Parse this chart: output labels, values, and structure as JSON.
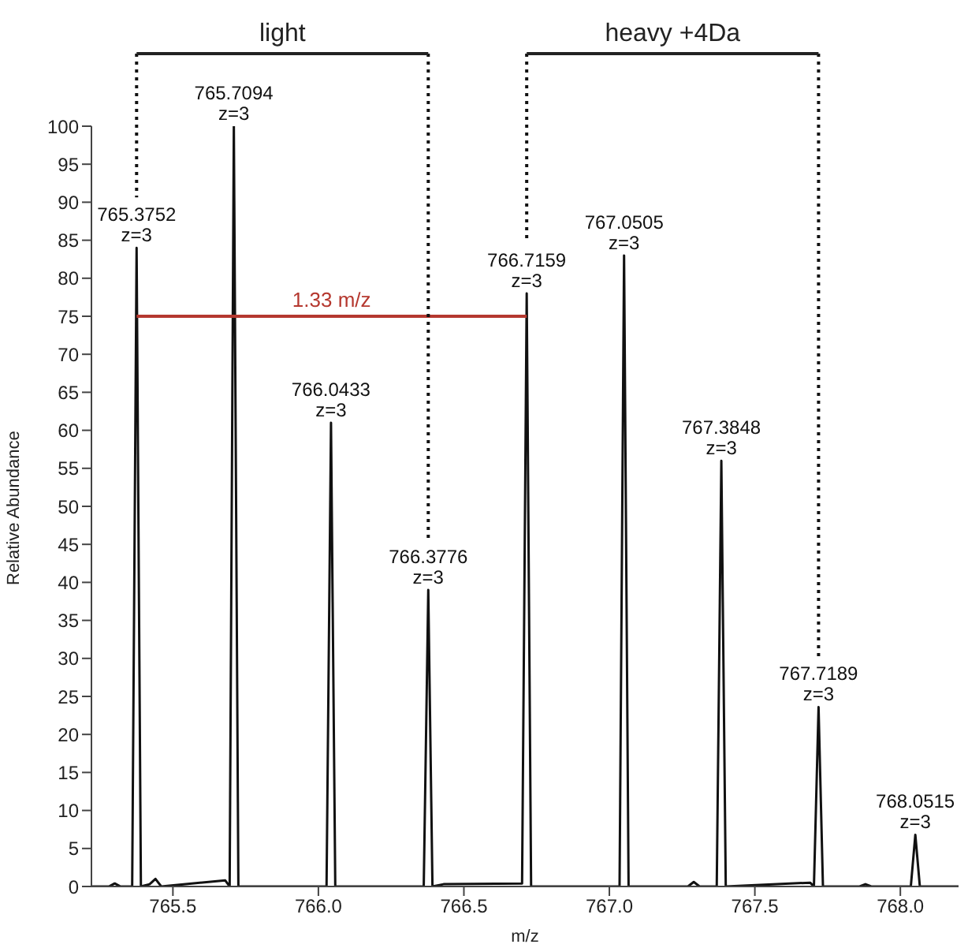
{
  "chart_data": {
    "type": "line",
    "xlabel": "m/z",
    "ylabel": "Relative Abundance",
    "xlim": [
      765.22,
      768.2
    ],
    "xticks": [
      765.5,
      {
        "value": 766,
        "label": "766.0"
      },
      766.5,
      {
        "value": 767,
        "label": "767.0"
      },
      767.5,
      {
        "value": 768,
        "label": "768.0"
      }
    ],
    "ylim": [
      0,
      100
    ],
    "yticks": [
      0,
      5,
      10,
      15,
      20,
      25,
      30,
      35,
      40,
      45,
      50,
      55,
      60,
      65,
      70,
      75,
      80,
      85,
      90,
      95,
      100
    ],
    "grid": false,
    "marker": "none",
    "series": [
      {
        "color": "#111111",
        "x": [
          765.22,
          765.28,
          765.3,
          765.32,
          765.36,
          765.3752,
          765.39,
          765.42,
          765.44,
          765.46,
          765.68,
          765.695,
          765.7094,
          765.725,
          765.76,
          766.028,
          766.0433,
          766.058,
          766.362,
          766.3776,
          766.392,
          766.43,
          766.7,
          766.7159,
          766.731,
          767.035,
          767.0505,
          767.066,
          767.27,
          767.29,
          767.31,
          767.369,
          767.3848,
          767.4,
          767.69,
          767.703,
          767.7189,
          767.734,
          767.86,
          767.88,
          767.9,
          768.036,
          768.0515,
          768.067,
          768.2
        ],
        "values": [
          0,
          0,
          0.4,
          0,
          0,
          84,
          0,
          0.3,
          1,
          0,
          0.8,
          0,
          100,
          0,
          0,
          0,
          61,
          0,
          0,
          39,
          0,
          0.3,
          0.4,
          78,
          0,
          0,
          83,
          0,
          0,
          0.6,
          0,
          0,
          56,
          0,
          0.5,
          0,
          23.6,
          0,
          0,
          0.3,
          0,
          0,
          6.8,
          0,
          0
        ]
      },
      {
        "name": "1.33 m/z",
        "color": "#b5382f",
        "x": [
          765.3752,
          766.7159
        ],
        "values": [
          75,
          75
        ]
      }
    ],
    "ref_lines": [
      {
        "axis": "x",
        "value": 765.3752,
        "line_style": "dotted",
        "color": "#111111"
      },
      {
        "axis": "x",
        "value": 766.3776,
        "line_style": "dotted",
        "color": "#111111"
      },
      {
        "axis": "x",
        "value": 766.7159,
        "line_style": "dotted",
        "color": "#111111"
      },
      {
        "axis": "x",
        "value": 767.7189,
        "line_style": "dotted",
        "color": "#111111"
      }
    ],
    "annotations": [
      "light",
      "heavy +4Da",
      {
        "text": "765.3752\nz=3",
        "x": 765.3752,
        "y": 84
      },
      {
        "text": "765.7094\nz=3",
        "x": 765.7094,
        "y": 100
      },
      {
        "text": "766.0433\nz=3",
        "x": 766.0433,
        "y": 61
      },
      {
        "text": "766.3776\nz=3",
        "x": 766.3776,
        "y": 39
      },
      {
        "text": "766.7159\nz=3",
        "x": 766.7159,
        "y": 78
      },
      {
        "text": "767.0505\nz=3",
        "x": 767.0505,
        "y": 83
      },
      {
        "text": "767.3848\nz=3",
        "x": 767.3848,
        "y": 56
      },
      {
        "text": "767.7189\nz=3",
        "x": 767.7189,
        "y": 23.6
      },
      {
        "text": "768.0515\nz=3",
        "x": 768.0515,
        "y": 6.8
      }
    ]
  }
}
